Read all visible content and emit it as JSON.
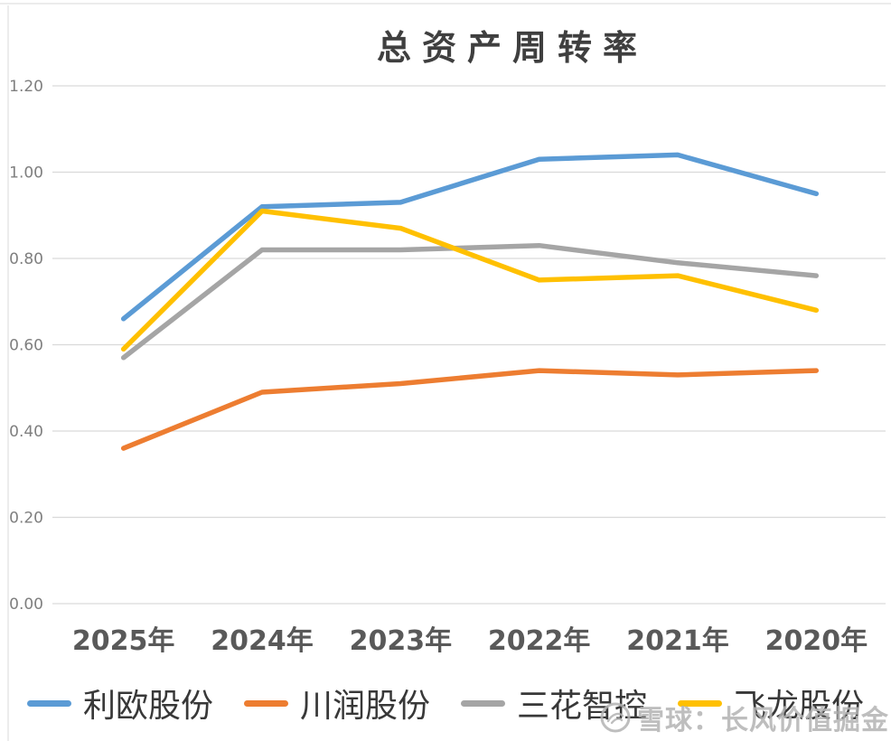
{
  "page": {
    "watermark": {
      "text": "雪球：长风价值掘金"
    }
  },
  "chart_data": {
    "type": "line",
    "title": "总资产周转率",
    "categories": [
      "2025年",
      "2024年",
      "2023年",
      "2022年",
      "2021年",
      "2020年"
    ],
    "series": [
      {
        "name": "利欧股份",
        "color": "#5B9BD5",
        "values": [
          0.66,
          0.92,
          0.93,
          1.03,
          1.04,
          0.95
        ]
      },
      {
        "name": "川润股份",
        "color": "#ED7D31",
        "values": [
          0.36,
          0.49,
          0.51,
          0.54,
          0.53,
          0.54
        ]
      },
      {
        "name": "三花智控",
        "color": "#A5A5A5",
        "values": [
          0.57,
          0.82,
          0.82,
          0.83,
          0.79,
          0.76
        ]
      },
      {
        "name": "飞龙股份",
        "color": "#FFC000",
        "values": [
          0.59,
          0.91,
          0.87,
          0.75,
          0.76,
          0.68
        ]
      }
    ],
    "ylim": [
      0.0,
      1.2
    ],
    "yticks": [
      1.2,
      1.0,
      0.8,
      0.6,
      0.4,
      0.2,
      0.0
    ],
    "ytick_labels": [
      "1.20",
      "1.00",
      "0.80",
      "0.60",
      "0.40",
      "0.20",
      "0.00"
    ],
    "grid": true,
    "legend_position": "bottom"
  }
}
